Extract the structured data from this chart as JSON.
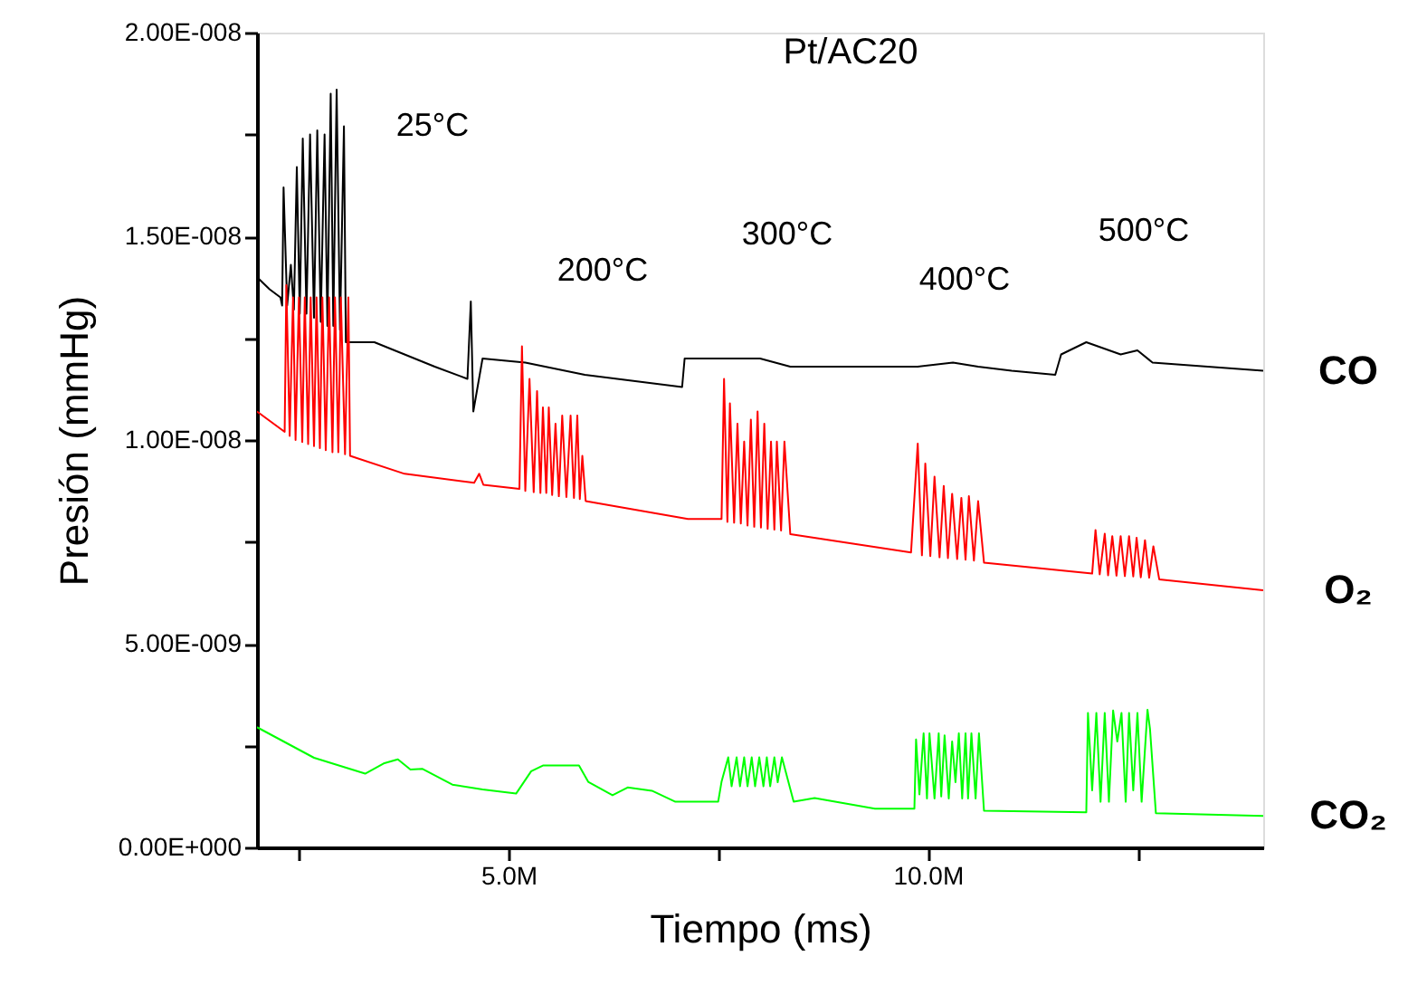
{
  "chart_data": {
    "type": "line",
    "title": "Pt/AC20",
    "xlabel": "Tiempo (ms)",
    "ylabel": "Presión (mmHg)",
    "xlim": [
      2000000,
      14000000
    ],
    "xticks": [
      {
        "value": 2500000,
        "label": null
      },
      {
        "value": 5000000,
        "label": "5.0M"
      },
      {
        "value": 7500000,
        "label": null
      },
      {
        "value": 10000000,
        "label": "10.0M"
      },
      {
        "value": 12500000,
        "label": null
      }
    ],
    "ylim": [
      0,
      2e-08
    ],
    "yticks": [
      {
        "value": 0,
        "label": "0.00E+000"
      },
      {
        "value": 2.5e-09,
        "label": null
      },
      {
        "value": 5e-09,
        "label": "5.00E-009"
      },
      {
        "value": 7.5e-09,
        "label": null
      },
      {
        "value": 1e-08,
        "label": "1.00E-008"
      },
      {
        "value": 1.25e-08,
        "label": null
      },
      {
        "value": 1.5e-08,
        "label": "1.50E-008"
      },
      {
        "value": 1.75e-08,
        "label": null
      },
      {
        "value": 2e-08,
        "label": "2.00E-008"
      }
    ],
    "grid": false,
    "marker": "none",
    "line_style": "solid",
    "annotations": [
      "25°C",
      "200°C",
      "300°C",
      "400°C",
      "500°C"
    ],
    "series": [
      {
        "name": "CO",
        "color": "#000000",
        "x": [
          2000000,
          2150000,
          2280000,
          2300000,
          2317000,
          2360000,
          2404000,
          2440000,
          2475000,
          2510000,
          2546000,
          2590000,
          2633000,
          2680000,
          2719000,
          2760000,
          2806000,
          2840000,
          2879000,
          2910000,
          2950000,
          2990000,
          3037000,
          3060000,
          3400000,
          4120000,
          4510000,
          4550000,
          4580000,
          4690000,
          5200000,
          5910000,
          7070000,
          7100000,
          8000000,
          8360000,
          9880000,
          10300000,
          10600000,
          11000000,
          11520000,
          11590000,
          11890000,
          12300000,
          12500000,
          12680000,
          14000000
        ],
        "values": [
          1.4e-08,
          1.37e-08,
          1.35e-08,
          1.33e-08,
          1.62e-08,
          1.33e-08,
          1.43e-08,
          1.32e-08,
          1.67e-08,
          1.31e-08,
          1.74e-08,
          1.31e-08,
          1.75e-08,
          1.3e-08,
          1.76e-08,
          1.29e-08,
          1.75e-08,
          1.28e-08,
          1.85e-08,
          1.28e-08,
          1.86e-08,
          1.27e-08,
          1.77e-08,
          1.24e-08,
          1.24e-08,
          1.18e-08,
          1.15e-08,
          1.34e-08,
          1.07e-08,
          1.2e-08,
          1.19e-08,
          1.16e-08,
          1.13e-08,
          1.2e-08,
          1.2e-08,
          1.18e-08,
          1.18e-08,
          1.19e-08,
          1.18e-08,
          1.17e-08,
          1.16e-08,
          1.21e-08,
          1.24e-08,
          1.21e-08,
          1.22e-08,
          1.19e-08,
          1.17e-08
        ]
      },
      {
        "name": "O₂",
        "color": "#ff0000",
        "x": [
          2000000,
          2330000,
          2350000,
          2390000,
          2430000,
          2460000,
          2500000,
          2540000,
          2570000,
          2610000,
          2640000,
          2680000,
          2710000,
          2750000,
          2780000,
          2820000,
          2860000,
          2900000,
          2930000,
          2970000,
          3000000,
          3050000,
          3090000,
          3110000,
          3760000,
          4590000,
          4650000,
          4700000,
          5130000,
          5160000,
          5200000,
          5250000,
          5300000,
          5340000,
          5380000,
          5410000,
          5450000,
          5480000,
          5520000,
          5560000,
          5600000,
          5640000,
          5690000,
          5740000,
          5780000,
          5820000,
          5850000,
          5880000,
          5920000,
          7140000,
          7540000,
          7570000,
          7610000,
          7640000,
          7690000,
          7730000,
          7770000,
          7810000,
          7850000,
          7890000,
          7930000,
          7970000,
          8010000,
          8050000,
          8090000,
          8130000,
          8170000,
          8200000,
          8250000,
          8290000,
          8360000,
          9800000,
          9880000,
          9930000,
          9970000,
          10030000,
          10080000,
          10140000,
          10190000,
          10240000,
          10290000,
          10350000,
          10400000,
          10450000,
          10490000,
          10550000,
          10600000,
          10670000,
          11960000,
          12000000,
          12050000,
          12110000,
          12150000,
          12200000,
          12250000,
          12300000,
          12350000,
          12400000,
          12450000,
          12490000,
          12540000,
          12590000,
          12640000,
          12690000,
          12760000,
          14000000
        ],
        "values": [
          1.07e-08,
          1.02e-08,
          1.38e-08,
          1.01e-08,
          1.35e-08,
          1e-08,
          1.35e-08,
          9.95e-09,
          1.35e-08,
          9.9e-09,
          1.35e-08,
          9.85e-09,
          1.35e-08,
          9.8e-09,
          1.35e-08,
          9.75e-09,
          1.35e-08,
          9.7e-09,
          1.35e-08,
          9.7e-09,
          1.35e-08,
          9.65e-09,
          1.35e-08,
          9.61e-09,
          9.17e-09,
          8.95e-09,
          9.17e-09,
          8.9e-09,
          8.8e-09,
          1.23e-08,
          8.75e-09,
          1.15e-08,
          8.72e-09,
          1.12e-08,
          8.7e-09,
          1.08e-08,
          8.7e-09,
          1.08e-08,
          8.65e-09,
          1.04e-08,
          8.62e-09,
          1.06e-08,
          8.6e-09,
          1.06e-08,
          8.58e-09,
          1.06e-08,
          8.55e-09,
          9.61e-09,
          8.5e-09,
          8.06e-09,
          8.06e-09,
          1.15e-08,
          7.99e-09,
          1.09e-08,
          7.97e-09,
          1.04e-08,
          7.95e-09,
          9.96e-09,
          7.9e-09,
          1.05e-08,
          7.87e-09,
          1.07e-08,
          7.85e-09,
          1.04e-08,
          7.82e-09,
          9.96e-09,
          7.8e-09,
          9.96e-09,
          7.78e-09,
          9.96e-09,
          7.69e-09,
          7.24e-09,
          9.91e-09,
          7.17e-09,
          9.42e-09,
          7.15e-09,
          9.1e-09,
          7.12e-09,
          8.87e-09,
          7.1e-09,
          8.68e-09,
          7.08e-09,
          8.58e-09,
          7.06e-09,
          8.62e-09,
          7.04e-09,
          8.5e-09,
          6.99e-09,
          6.72e-09,
          7.79e-09,
          6.7e-09,
          7.7e-09,
          6.68e-09,
          7.64e-09,
          6.67e-09,
          7.64e-09,
          6.66e-09,
          7.64e-09,
          6.65e-09,
          7.6e-09,
          6.63e-09,
          7.54e-09,
          6.62e-09,
          7.39e-09,
          6.58e-09,
          6.31e-09
        ]
      },
      {
        "name": "CO₂",
        "color": "#00ff00",
        "x": [
          2000000,
          2680000,
          3290000,
          3510000,
          3680000,
          3830000,
          3970000,
          4330000,
          4690000,
          5090000,
          5270000,
          5410000,
          5840000,
          5950000,
          6240000,
          6420000,
          6710000,
          6990000,
          7500000,
          7540000,
          7620000,
          7660000,
          7720000,
          7760000,
          7810000,
          7850000,
          7900000,
          7940000,
          7990000,
          8040000,
          8080000,
          8120000,
          8170000,
          8210000,
          8260000,
          8400000,
          8650000,
          9370000,
          9840000,
          9860000,
          9900000,
          9950000,
          9990000,
          10020000,
          10080000,
          10130000,
          10160000,
          10200000,
          10250000,
          10290000,
          10330000,
          10370000,
          10410000,
          10450000,
          10480000,
          10520000,
          10570000,
          10610000,
          10670000,
          11890000,
          11910000,
          11960000,
          12010000,
          12060000,
          12110000,
          12160000,
          12210000,
          12260000,
          12310000,
          12360000,
          12400000,
          12450000,
          12500000,
          12550000,
          12620000,
          12650000,
          12720000,
          14000000
        ],
        "values": [
          2.95e-09,
          2.2e-09,
          1.81e-09,
          2.06e-09,
          2.16e-09,
          1.91e-09,
          1.93e-09,
          1.54e-09,
          1.42e-09,
          1.32e-09,
          1.87e-09,
          2.01e-09,
          2.01e-09,
          1.61e-09,
          1.28e-09,
          1.47e-09,
          1.39e-09,
          1.12e-09,
          1.12e-09,
          1.61e-09,
          2.21e-09,
          1.5e-09,
          2.21e-09,
          1.5e-09,
          2.21e-09,
          1.5e-09,
          2.21e-09,
          1.5e-09,
          2.21e-09,
          1.5e-09,
          2.21e-09,
          1.5e-09,
          2.21e-09,
          1.6e-09,
          2.21e-09,
          1.12e-09,
          1.21e-09,
          9.5e-10,
          9.5e-10,
          2.65e-09,
          1.3e-09,
          2.8e-09,
          1.2e-09,
          2.8e-09,
          1.2e-09,
          2.8e-09,
          1.25e-09,
          2.75e-09,
          1.2e-09,
          2.6e-09,
          1.6e-09,
          2.8e-09,
          1.2e-09,
          2.8e-09,
          1.2e-09,
          2.8e-09,
          1.2e-09,
          2.8e-09,
          9e-10,
          8.6e-10,
          3.3e-09,
          1.4e-09,
          3.3e-09,
          1.12e-09,
          3.3e-09,
          1.12e-09,
          3.36e-09,
          2.6e-09,
          3.3e-09,
          1.12e-09,
          3.3e-09,
          1.4e-09,
          3.3e-09,
          1.12e-09,
          3.38e-09,
          2.9e-09,
          8.4e-10,
          7.7e-10
        ]
      }
    ]
  }
}
